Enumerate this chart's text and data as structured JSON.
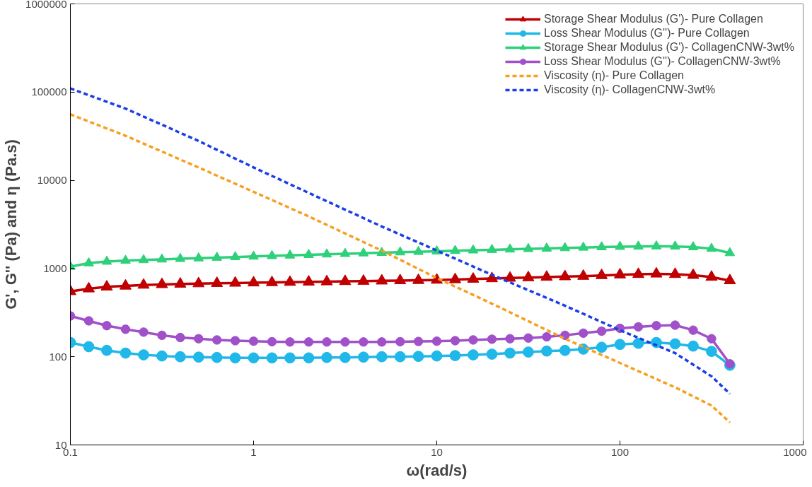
{
  "chart_data": {
    "type": "line",
    "xlabel": "ω(rad/s)",
    "ylabel": "G', G'' (Pa) and η (Pa.s)",
    "log": "xy",
    "xlim": [
      0.1,
      1000
    ],
    "ylim": [
      10,
      1000000
    ],
    "xticks": [
      0.1,
      1,
      10,
      100,
      1000
    ],
    "yticks": [
      10,
      100,
      1000,
      10000,
      100000,
      1000000
    ],
    "grid": false,
    "legend": "top right",
    "x": [
      0.1,
      0.126,
      0.158,
      0.2,
      0.251,
      0.316,
      0.398,
      0.501,
      0.631,
      0.794,
      1,
      1.26,
      1.58,
      2,
      2.51,
      3.16,
      3.98,
      5.01,
      6.31,
      7.94,
      10,
      12.6,
      15.8,
      20,
      25.1,
      31.6,
      39.8,
      50.1,
      63.1,
      79.4,
      100,
      126,
      158,
      200,
      251,
      316,
      398
    ],
    "series": [
      {
        "name": "Storage Shear Modulus (G')- Pure Collagen",
        "color": "#c00000",
        "marker": "triangle",
        "line_style": "solid",
        "values": [
          550,
          590,
          620,
          635,
          650,
          660,
          668,
          675,
          680,
          685,
          690,
          695,
          700,
          705,
          710,
          715,
          720,
          725,
          730,
          735,
          740,
          750,
          760,
          770,
          780,
          790,
          800,
          810,
          820,
          835,
          850,
          860,
          870,
          860,
          840,
          800,
          730
        ]
      },
      {
        "name": "Loss Shear Modulus (G'')- Pure Collagen",
        "color": "#1fb8e8",
        "marker": "circle",
        "line_style": "solid",
        "values": [
          145,
          130,
          118,
          110,
          105,
          102,
          100,
          99,
          98,
          97,
          97,
          97,
          97,
          97,
          98,
          98,
          99,
          100,
          100,
          101,
          102,
          103,
          105,
          107,
          110,
          113,
          116,
          118,
          122,
          128,
          138,
          142,
          145,
          140,
          132,
          115,
          80
        ]
      },
      {
        "name": "Storage Shear Modulus (G')- CollagenCNW-3wt%",
        "color": "#2ed07a",
        "marker": "triangle",
        "line_style": "solid",
        "values": [
          1050,
          1150,
          1200,
          1230,
          1250,
          1270,
          1290,
          1310,
          1330,
          1350,
          1370,
          1390,
          1410,
          1430,
          1450,
          1470,
          1490,
          1510,
          1530,
          1550,
          1570,
          1590,
          1610,
          1630,
          1650,
          1670,
          1690,
          1710,
          1730,
          1750,
          1770,
          1780,
          1790,
          1780,
          1750,
          1680,
          1500
        ]
      },
      {
        "name": "Loss Shear Modulus (G'')- CollagenCNW-3wt%",
        "color": "#a050c8",
        "marker": "circle",
        "line_style": "solid",
        "values": [
          290,
          255,
          225,
          205,
          190,
          175,
          165,
          160,
          155,
          152,
          150,
          148,
          147,
          147,
          147,
          147,
          147,
          147,
          148,
          149,
          150,
          152,
          155,
          158,
          160,
          163,
          168,
          175,
          185,
          195,
          210,
          218,
          225,
          228,
          200,
          160,
          83
        ]
      },
      {
        "name": "Viscosity (η)- Pure Collagen",
        "color": "#f5a020",
        "marker": "none",
        "line_style": "dashed",
        "x": [
          0.1,
          0.2,
          0.5,
          1,
          2,
          5,
          10,
          20,
          50,
          100,
          200,
          316,
          398
        ],
        "values": [
          56000,
          32000,
          14000,
          7400,
          3900,
          1600,
          780,
          400,
          160,
          85,
          45,
          28,
          18
        ]
      },
      {
        "name": "Viscosity (η)- CollagenCNW-3wt%",
        "color": "#1a3ee8",
        "marker": "none",
        "line_style": "dashed",
        "x": [
          0.1,
          0.2,
          0.5,
          1,
          2,
          5,
          10,
          20,
          50,
          100,
          200,
          316,
          398
        ],
        "values": [
          110000,
          65000,
          28000,
          14000,
          7200,
          3000,
          1600,
          850,
          380,
          200,
          110,
          60,
          38
        ]
      }
    ]
  }
}
